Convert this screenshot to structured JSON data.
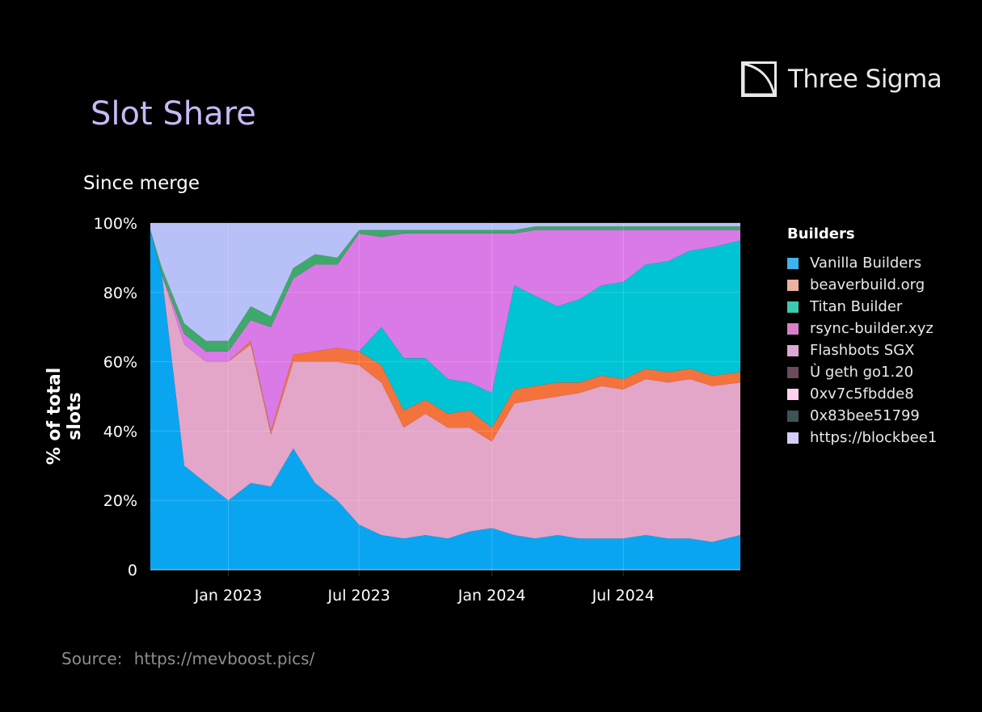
{
  "header": {
    "title": "Slot Share",
    "subtitle": "Since merge"
  },
  "logo": {
    "name": "Three Sigma",
    "icon": "three-sigma-logo-icon"
  },
  "source": {
    "label": "Source:",
    "url": "https://mevboost.pics/"
  },
  "legend": {
    "title": "Builders",
    "items": [
      {
        "name": "Vanilla Builders",
        "color": "#3db4ee"
      },
      {
        "name": "beaverbuild.org",
        "color": "#eeb0a0"
      },
      {
        "name": "Titan Builder",
        "color": "#3ec9b0"
      },
      {
        "name": "rsync-builder.xyz",
        "color": "#d97fc6"
      },
      {
        "name": "Flashbots SGX",
        "color": "#dcaad0"
      },
      {
        "name": "Ù geth go1.20",
        "color": "#6b4a5e"
      },
      {
        "name": "0xv7c5fbdde8",
        "color": "#ffd2ee"
      },
      {
        "name": "0x83bee51799",
        "color": "#3f5257"
      },
      {
        "name": "https://blockbee1",
        "color": "#d3cef5"
      }
    ]
  },
  "chart_data": {
    "type": "area",
    "stacked": true,
    "ylabel": "% of total slots",
    "ylim": [
      0,
      100
    ],
    "y_ticks": [
      "0",
      "20%",
      "40%",
      "60%",
      "80%",
      "100%"
    ],
    "x_ticks": [
      "Jan 2023",
      "Jul 2023",
      "Jan 2024",
      "Jul 2024"
    ],
    "x_tick_dates": [
      "2023-01-01",
      "2023-07-01",
      "2024-01-01",
      "2024-07-01"
    ],
    "x_range": [
      "2022-09-15",
      "2024-12-10"
    ],
    "grid": true,
    "legend_position": "right",
    "x": [
      "2022-09-15",
      "2022-10-01",
      "2022-11-01",
      "2022-12-01",
      "2023-01-01",
      "2023-02-01",
      "2023-03-01",
      "2023-04-01",
      "2023-05-01",
      "2023-06-01",
      "2023-07-01",
      "2023-08-01",
      "2023-09-01",
      "2023-10-01",
      "2023-11-01",
      "2023-12-01",
      "2024-01-01",
      "2024-02-01",
      "2024-03-01",
      "2024-04-01",
      "2024-05-01",
      "2024-06-01",
      "2024-07-01",
      "2024-08-01",
      "2024-09-01",
      "2024-10-01",
      "2024-11-01",
      "2024-12-10"
    ],
    "series": [
      {
        "name": "Vanilla Builders",
        "color": "#0aa5f0",
        "values": [
          98,
          85,
          30,
          25,
          20,
          25,
          24,
          35,
          25,
          20,
          13,
          10,
          9,
          10,
          9,
          11,
          12,
          10,
          9,
          10,
          9,
          9,
          9,
          10,
          9,
          9,
          8,
          10
        ]
      },
      {
        "name": "Flashbots SGX",
        "color": "#e3a5c8",
        "values": [
          0,
          0,
          35,
          35,
          40,
          40,
          15,
          25,
          35,
          40,
          46,
          44,
          32,
          35,
          32,
          30,
          25,
          38,
          40,
          40,
          42,
          44,
          43,
          45,
          45,
          46,
          45,
          44
        ]
      },
      {
        "name": "beaverbuild.org",
        "color": "#f4723c",
        "values": [
          0,
          0,
          0,
          0,
          0,
          1,
          1,
          2,
          3,
          4,
          4,
          5,
          5,
          4,
          4,
          5,
          4,
          4,
          4,
          4,
          3,
          3,
          3,
          3,
          3,
          3,
          3,
          3
        ]
      },
      {
        "name": "Titan Builder",
        "color": "#00c4d3",
        "values": [
          0,
          0,
          0,
          0,
          0,
          0,
          0,
          0,
          0,
          0,
          0,
          11,
          15,
          12,
          10,
          8,
          10,
          30,
          26,
          22,
          24,
          26,
          28,
          30,
          32,
          34,
          37,
          38
        ]
      },
      {
        "name": "rsync-builder.xyz",
        "color": "#d97ae6",
        "values": [
          0,
          0,
          3,
          3,
          3,
          6,
          30,
          22,
          25,
          24,
          34,
          26,
          36,
          36,
          42,
          43,
          46,
          15,
          19,
          22,
          20,
          16,
          15,
          10,
          9,
          6,
          5,
          3
        ]
      },
      {
        "name": "0x83bee51799",
        "color": "#3fa86b",
        "values": [
          0,
          2,
          3,
          3,
          3,
          4,
          3,
          3,
          3,
          2,
          1,
          2,
          1,
          1,
          1,
          1,
          1,
          1,
          1,
          1,
          1,
          1,
          1,
          1,
          1,
          1,
          1,
          1
        ]
      },
      {
        "name": "https://blockbee1",
        "color": "#b8c0f8",
        "values": [
          2,
          13,
          29,
          34,
          34,
          24,
          27,
          13,
          9,
          10,
          2,
          2,
          2,
          2,
          2,
          2,
          2,
          2,
          1,
          1,
          1,
          1,
          1,
          1,
          1,
          1,
          1,
          1
        ]
      }
    ]
  }
}
